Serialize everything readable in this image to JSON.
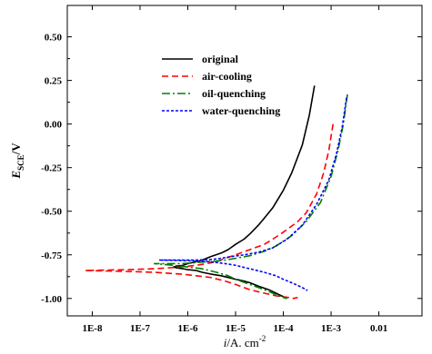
{
  "chart_data": {
    "type": "line",
    "x_scale": "log",
    "xlim": [
      3e-09,
      0.08
    ],
    "ylim": [
      -1.1,
      0.68
    ],
    "xticks": [
      {
        "value": 1e-08,
        "label": "1E-8"
      },
      {
        "value": 1e-07,
        "label": "1E-7"
      },
      {
        "value": 1e-06,
        "label": "1E-6"
      },
      {
        "value": 1e-05,
        "label": "1E-5"
      },
      {
        "value": 0.0001,
        "label": "1E-4"
      },
      {
        "value": 0.001,
        "label": "1E-3"
      },
      {
        "value": 0.01,
        "label": "0.01"
      }
    ],
    "yticks": [
      {
        "value": 0.5,
        "label": "0.50"
      },
      {
        "value": 0.25,
        "label": "0.25"
      },
      {
        "value": 0.0,
        "label": "0.00"
      },
      {
        "value": -0.25,
        "label": "-0.25"
      },
      {
        "value": -0.5,
        "label": "-0.50"
      },
      {
        "value": -0.75,
        "label": "-0.75"
      },
      {
        "value": -1.0,
        "label": "-1.00"
      }
    ],
    "xlabel": {
      "italic": "i",
      "text": "/A. cm",
      "sup": "-2"
    },
    "ylabel": {
      "italic": "E",
      "sub": "SCE",
      "text": "/V"
    },
    "grid": false,
    "legend_position": "top-center",
    "series": [
      {
        "name": "original",
        "color": "#000000",
        "dash": "",
        "x": [
          0.00045,
          0.00035,
          0.00025,
          0.00015,
          0.0001,
          6e-05,
          4e-05,
          3e-05,
          2e-05,
          1.5e-05,
          1e-05,
          7e-06,
          5e-06,
          3e-06,
          2e-06,
          1.5e-06,
          1e-06,
          8e-07,
          6e-07,
          5e-07,
          6e-07,
          8e-07,
          1e-06,
          1.5e-06,
          2e-06,
          3e-06,
          5e-06,
          7e-06,
          1e-05,
          1.5e-05,
          2e-05,
          3e-05,
          5e-05,
          7e-05,
          0.0001,
          0.00012
        ],
        "y": [
          0.22,
          0.05,
          -0.12,
          -0.28,
          -0.38,
          -0.48,
          -0.54,
          -0.58,
          -0.63,
          -0.66,
          -0.69,
          -0.72,
          -0.74,
          -0.76,
          -0.78,
          -0.79,
          -0.8,
          -0.81,
          -0.815,
          -0.82,
          -0.825,
          -0.83,
          -0.835,
          -0.84,
          -0.85,
          -0.86,
          -0.87,
          -0.88,
          -0.89,
          -0.9,
          -0.91,
          -0.93,
          -0.95,
          -0.97,
          -0.99,
          -1.0
        ]
      },
      {
        "name": "air-cooling",
        "color": "#ff0000",
        "dash": "7,4",
        "x": [
          0.0011,
          0.0009,
          0.0007,
          0.0005,
          0.0003,
          0.0002,
          0.0001,
          6e-05,
          4e-05,
          2e-05,
          1e-05,
          6e-06,
          4e-06,
          2.5e-06,
          1.5e-06,
          7e-07,
          2e-07,
          5e-08,
          7e-09,
          5e-08,
          2e-07,
          7e-07,
          1.5e-06,
          3e-06,
          6e-06,
          1e-05,
          2e-05,
          4e-05,
          7e-05,
          0.0001,
          0.00013,
          0.00016,
          0.0002
        ],
        "y": [
          0.0,
          -0.15,
          -0.28,
          -0.4,
          -0.51,
          -0.56,
          -0.62,
          -0.66,
          -0.69,
          -0.72,
          -0.75,
          -0.77,
          -0.79,
          -0.8,
          -0.81,
          -0.82,
          -0.83,
          -0.835,
          -0.84,
          -0.845,
          -0.85,
          -0.86,
          -0.87,
          -0.88,
          -0.9,
          -0.92,
          -0.95,
          -0.97,
          -0.985,
          -0.99,
          -0.995,
          -1.0,
          -0.995
        ]
      },
      {
        "name": "oil-quenching",
        "color": "#008000",
        "dash": "9,3,2,3",
        "x": [
          0.0022,
          0.0018,
          0.0014,
          0.001,
          0.0006,
          0.0003,
          0.00015,
          7e-05,
          4e-05,
          2e-05,
          1e-05,
          6e-06,
          4e-06,
          2.5e-06,
          1.5e-06,
          7e-07,
          2e-07,
          5e-07,
          1e-06,
          2e-06,
          4e-06,
          7e-06,
          1e-05,
          2e-05,
          4e-05,
          6e-05,
          8e-05,
          0.0001,
          0.00012
        ],
        "y": [
          0.17,
          0.0,
          -0.15,
          -0.3,
          -0.45,
          -0.56,
          -0.64,
          -0.7,
          -0.73,
          -0.755,
          -0.77,
          -0.78,
          -0.785,
          -0.79,
          -0.795,
          -0.8,
          -0.8,
          -0.81,
          -0.82,
          -0.83,
          -0.85,
          -0.87,
          -0.89,
          -0.92,
          -0.95,
          -0.97,
          -0.985,
          -0.995,
          -1.0
        ]
      },
      {
        "name": "water-quenching",
        "color": "#0000ff",
        "dash": "3,2",
        "x": [
          0.0021,
          0.0017,
          0.0013,
          0.0009,
          0.0005,
          0.00025,
          0.00012,
          6e-05,
          3e-05,
          1.5e-05,
          8e-06,
          5e-06,
          3.5e-06,
          2.5e-06,
          1.5e-06,
          6e-07,
          2.5e-07,
          6e-07,
          1.5e-06,
          3e-06,
          6e-06,
          1e-05,
          2e-05,
          4e-05,
          7e-05,
          0.0001,
          0.00015,
          0.0002,
          0.00026,
          0.00032
        ],
        "y": [
          0.15,
          -0.02,
          -0.17,
          -0.32,
          -0.46,
          -0.58,
          -0.66,
          -0.71,
          -0.735,
          -0.75,
          -0.76,
          -0.77,
          -0.775,
          -0.778,
          -0.78,
          -0.78,
          -0.78,
          -0.782,
          -0.785,
          -0.79,
          -0.8,
          -0.81,
          -0.83,
          -0.85,
          -0.87,
          -0.89,
          -0.91,
          -0.925,
          -0.94,
          -0.955
        ]
      }
    ]
  }
}
